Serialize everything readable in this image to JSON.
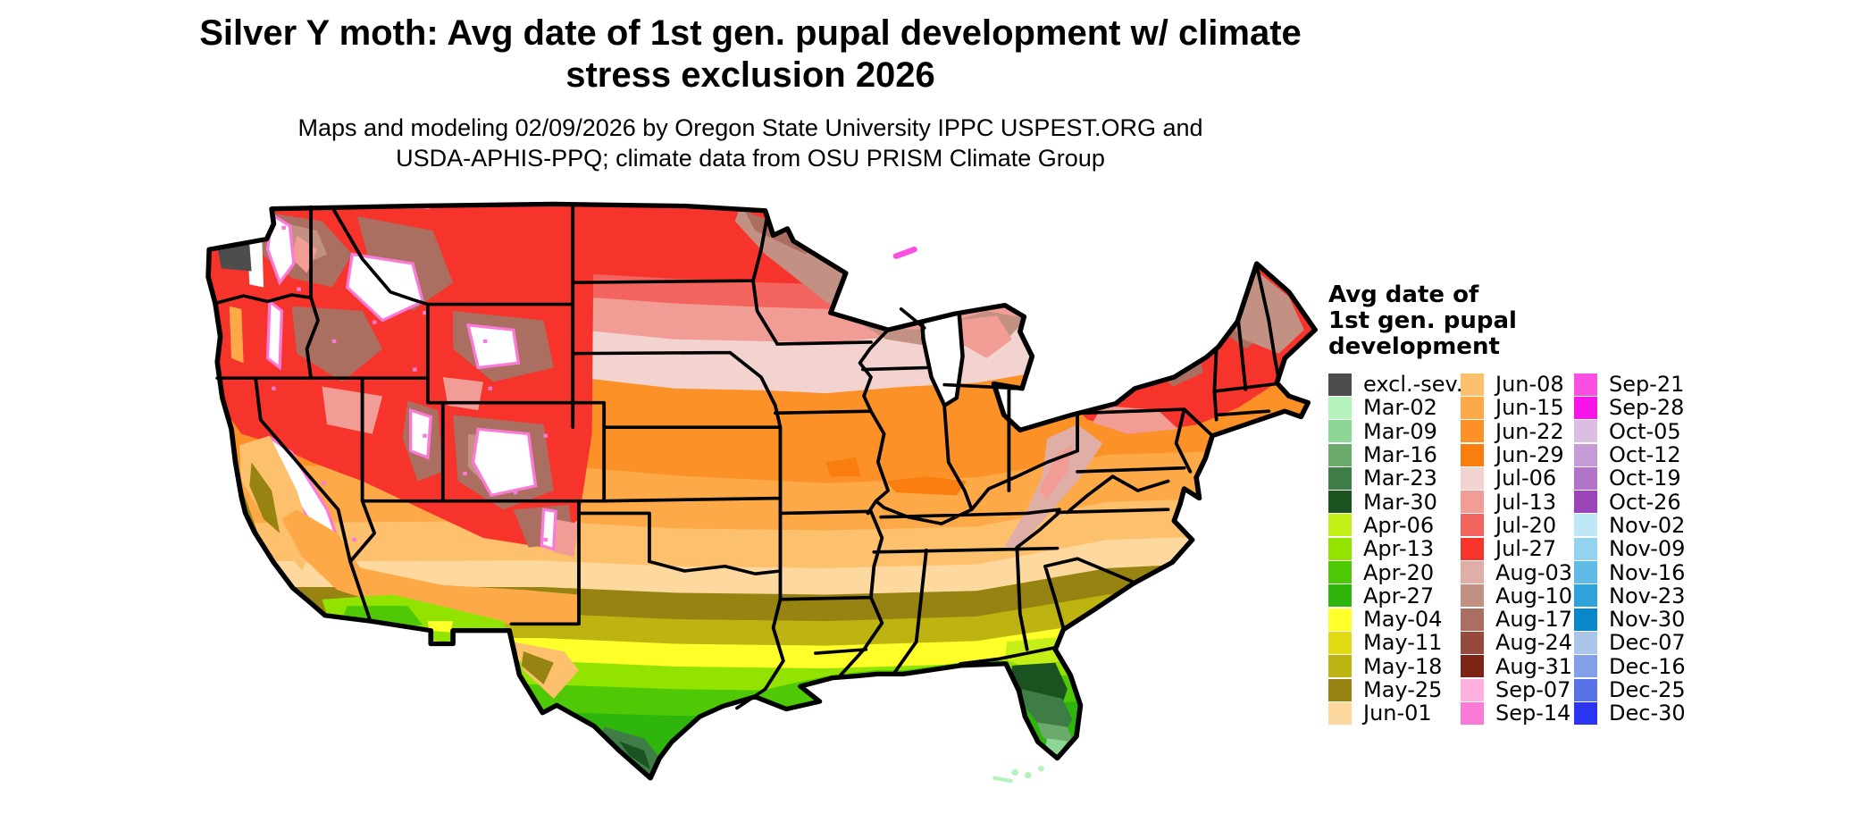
{
  "title": {
    "line1": "Silver Y moth: Avg date of 1st gen. pupal development w/ climate",
    "line2": "stress exclusion 2026"
  },
  "subtitle": {
    "line1": "Maps and modeling 02/09/2026 by Oregon State University IPPC USPEST.ORG and",
    "line2": "USDA-APHIS-PPQ; climate data from OSU PRISM Climate Group"
  },
  "legend": {
    "title": "Avg date of\n1st gen. pupal\ndevelopment",
    "columns": [
      {
        "entries": [
          {
            "label": "excl.-sev.",
            "color": "excl"
          },
          {
            "label": "Mar-02",
            "color": "mar02"
          },
          {
            "label": "Mar-09",
            "color": "mar09"
          },
          {
            "label": "Mar-16",
            "color": "mar16"
          },
          {
            "label": "Mar-23",
            "color": "mar23"
          },
          {
            "label": "Mar-30",
            "color": "mar30"
          },
          {
            "label": "Apr-06",
            "color": "apr06"
          },
          {
            "label": "Apr-13",
            "color": "apr13"
          },
          {
            "label": "Apr-20",
            "color": "apr20"
          },
          {
            "label": "Apr-27",
            "color": "apr27"
          },
          {
            "label": "May-04",
            "color": "may04"
          },
          {
            "label": "May-11",
            "color": "may11"
          },
          {
            "label": "May-18",
            "color": "may18"
          },
          {
            "label": "May-25",
            "color": "may25"
          },
          {
            "label": "Jun-01",
            "color": "jun01"
          }
        ]
      },
      {
        "entries": [
          {
            "label": "Jun-08",
            "color": "jun08"
          },
          {
            "label": "Jun-15",
            "color": "jun15"
          },
          {
            "label": "Jun-22",
            "color": "jun22"
          },
          {
            "label": "Jun-29",
            "color": "jun29"
          },
          {
            "label": "Jul-06",
            "color": "jul06"
          },
          {
            "label": "Jul-13",
            "color": "jul13"
          },
          {
            "label": "Jul-20",
            "color": "jul20"
          },
          {
            "label": "Jul-27",
            "color": "jul27"
          },
          {
            "label": "Aug-03",
            "color": "aug03"
          },
          {
            "label": "Aug-10",
            "color": "aug10"
          },
          {
            "label": "Aug-17",
            "color": "aug17"
          },
          {
            "label": "Aug-24",
            "color": "aug24"
          },
          {
            "label": "Aug-31",
            "color": "aug31"
          },
          {
            "label": "Sep-07",
            "color": "sep07"
          },
          {
            "label": "Sep-14",
            "color": "sep14"
          }
        ]
      },
      {
        "entries": [
          {
            "label": "Sep-21",
            "color": "sep21"
          },
          {
            "label": "Sep-28",
            "color": "sep28"
          },
          {
            "label": "Oct-05",
            "color": "oct05"
          },
          {
            "label": "Oct-12",
            "color": "oct12"
          },
          {
            "label": "Oct-19",
            "color": "oct19"
          },
          {
            "label": "Oct-26",
            "color": "oct26"
          },
          {
            "label": "Nov-02",
            "color": "nov02"
          },
          {
            "label": "Nov-09",
            "color": "nov09"
          },
          {
            "label": "Nov-16",
            "color": "nov16"
          },
          {
            "label": "Nov-23",
            "color": "nov23"
          },
          {
            "label": "Nov-30",
            "color": "nov30"
          },
          {
            "label": "Dec-07",
            "color": "dec07"
          },
          {
            "label": "Dec-16",
            "color": "dec16"
          },
          {
            "label": "Dec-25",
            "color": "dec25"
          },
          {
            "label": "Dec-30",
            "color": "dec30"
          }
        ]
      }
    ]
  },
  "colors": {
    "excl": "#4d4d4d",
    "mar02": "#b5f2bc",
    "mar09": "#8ed696",
    "mar16": "#6aaa6a",
    "mar23": "#3e7d45",
    "mar30": "#1a5220",
    "apr06": "#c4ef17",
    "apr13": "#93e300",
    "apr20": "#4fc905",
    "apr27": "#2eb60d",
    "may04": "#ffff29",
    "may11": "#e0da12",
    "may18": "#bdb411",
    "may25": "#978312",
    "jun01": "#fdd89f",
    "jun08": "#fdc06c",
    "jun15": "#fda947",
    "jun22": "#fc9127",
    "jun29": "#fa7d0f",
    "jul06": "#f2d3cf",
    "jul13": "#f29c96",
    "jul20": "#f2645d",
    "jul27": "#f7342c",
    "aug03": "#dfaea6",
    "aug10": "#c39183",
    "aug17": "#aa6f60",
    "aug24": "#964a3c",
    "aug31": "#7c2416",
    "sep07": "#ffb0df",
    "sep14": "#fb7ad7",
    "sep21": "#fa4fe1",
    "sep28": "#f813e8",
    "oct05": "#dabfe3",
    "oct12": "#c69cd6",
    "oct19": "#b274c7",
    "oct26": "#9c45b8",
    "nov02": "#bfe8f7",
    "nov09": "#92d4f0",
    "nov16": "#60bbe6",
    "nov23": "#2fa2d9",
    "nov30": "#0a87c8",
    "dec07": "#abc6e8",
    "dec16": "#82a0e8",
    "dec25": "#5872e8",
    "dec30": "#2b34f2",
    "white": "#ffffff",
    "border": "#000000"
  },
  "map": {
    "region": "Continental United States",
    "style": "raster choropleth of average 1st generation pupal development date",
    "pattern_north_to_south": [
      "Aug (browns)",
      "Jul (reds/pinks)",
      "Jun (oranges/tan)",
      "May (olive/yellow)",
      "Apr (greens)",
      "Mar (dark to pale greens)"
    ]
  }
}
